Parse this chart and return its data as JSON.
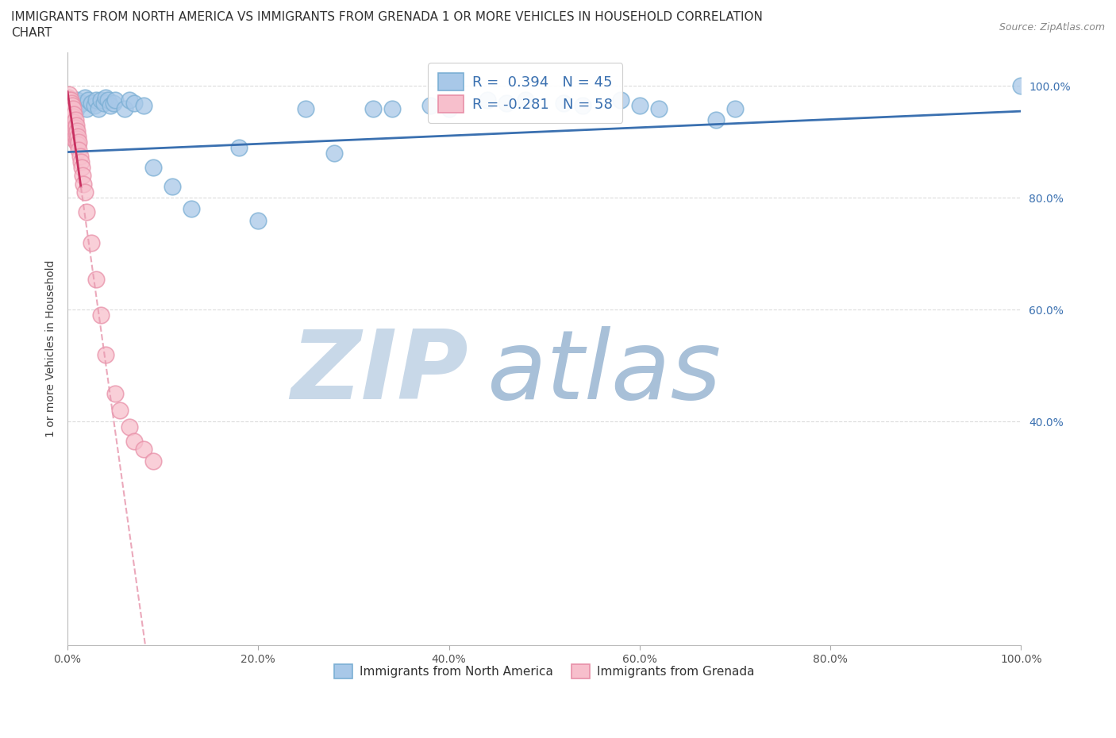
{
  "title_line1": "IMMIGRANTS FROM NORTH AMERICA VS IMMIGRANTS FROM GRENADA 1 OR MORE VEHICLES IN HOUSEHOLD CORRELATION",
  "title_line2": "CHART",
  "source": "Source: ZipAtlas.com",
  "ylabel": "1 or more Vehicles in Household",
  "xlim": [
    0.0,
    1.0
  ],
  "ylim": [
    0.0,
    1.06
  ],
  "xticks": [
    0.0,
    0.2,
    0.4,
    0.6,
    0.8,
    1.0
  ],
  "yticks": [
    0.4,
    0.6,
    0.8,
    1.0
  ],
  "ytick_labels": [
    "40.0%",
    "60.0%",
    "80.0%",
    "100.0%"
  ],
  "xtick_labels": [
    "0.0%",
    "20.0%",
    "40.0%",
    "60.0%",
    "80.0%",
    "100.0%"
  ],
  "legend_line1": "R =  0.394   N = 45",
  "legend_line2": "R = -0.281   N = 58",
  "blue_scatter_color": "#a8c8e8",
  "blue_edge_color": "#7bafd4",
  "pink_scatter_color": "#f7bfcc",
  "pink_edge_color": "#e890a8",
  "blue_line_color": "#3a70b0",
  "pink_line_color": "#c83060",
  "pink_line_dashed_color": "#e89ab0",
  "legend_color": "#3a70b0",
  "legend_bg": "#ffffff",
  "watermark_zip": "ZIP",
  "watermark_atlas": "atlas",
  "watermark_color_zip": "#c8d8e8",
  "watermark_color_atlas": "#a8c0d8",
  "background_color": "#ffffff",
  "grid_color": "#d8d8d8",
  "title_fontsize": 11,
  "label_fontsize": 10,
  "tick_fontsize": 10,
  "legend_fontsize": 13,
  "source_fontsize": 9,
  "blue_scatter_x": [
    0.005,
    0.008,
    0.01,
    0.012,
    0.015,
    0.018,
    0.02,
    0.022,
    0.025,
    0.028,
    0.03,
    0.032,
    0.035,
    0.038,
    0.04,
    0.042,
    0.045,
    0.048,
    0.05,
    0.06,
    0.065,
    0.07,
    0.08,
    0.09,
    0.11,
    0.13,
    0.18,
    0.2,
    0.25,
    0.28,
    0.32,
    0.34,
    0.38,
    0.4,
    0.44,
    0.46,
    0.48,
    0.52,
    0.54,
    0.58,
    0.6,
    0.62,
    0.68,
    0.7,
    1.0
  ],
  "blue_scatter_y": [
    0.96,
    0.955,
    0.975,
    0.965,
    0.97,
    0.98,
    0.96,
    0.975,
    0.97,
    0.965,
    0.975,
    0.96,
    0.975,
    0.97,
    0.98,
    0.975,
    0.965,
    0.97,
    0.975,
    0.96,
    0.975,
    0.97,
    0.965,
    0.855,
    0.82,
    0.78,
    0.89,
    0.76,
    0.96,
    0.88,
    0.96,
    0.96,
    0.965,
    0.96,
    0.975,
    0.97,
    0.975,
    0.97,
    0.965,
    0.975,
    0.965,
    0.96,
    0.94,
    0.96,
    1.0
  ],
  "pink_scatter_x": [
    0.001,
    0.001,
    0.001,
    0.002,
    0.002,
    0.002,
    0.002,
    0.003,
    0.003,
    0.003,
    0.003,
    0.004,
    0.004,
    0.004,
    0.004,
    0.004,
    0.005,
    0.005,
    0.005,
    0.005,
    0.005,
    0.006,
    0.006,
    0.006,
    0.006,
    0.007,
    0.007,
    0.007,
    0.007,
    0.008,
    0.008,
    0.008,
    0.009,
    0.009,
    0.009,
    0.01,
    0.01,
    0.011,
    0.011,
    0.012,
    0.012,
    0.013,
    0.014,
    0.015,
    0.016,
    0.017,
    0.018,
    0.02,
    0.025,
    0.03,
    0.035,
    0.04,
    0.05,
    0.055,
    0.065,
    0.07,
    0.08,
    0.09
  ],
  "pink_scatter_y": [
    0.98,
    0.975,
    0.97,
    0.985,
    0.975,
    0.96,
    0.95,
    0.975,
    0.96,
    0.95,
    0.94,
    0.97,
    0.955,
    0.945,
    0.935,
    0.92,
    0.965,
    0.95,
    0.94,
    0.93,
    0.915,
    0.96,
    0.945,
    0.93,
    0.915,
    0.95,
    0.935,
    0.92,
    0.905,
    0.94,
    0.925,
    0.91,
    0.93,
    0.915,
    0.9,
    0.92,
    0.905,
    0.91,
    0.895,
    0.9,
    0.885,
    0.875,
    0.865,
    0.855,
    0.84,
    0.825,
    0.81,
    0.775,
    0.72,
    0.655,
    0.59,
    0.52,
    0.45,
    0.42,
    0.39,
    0.365,
    0.35,
    0.33
  ]
}
